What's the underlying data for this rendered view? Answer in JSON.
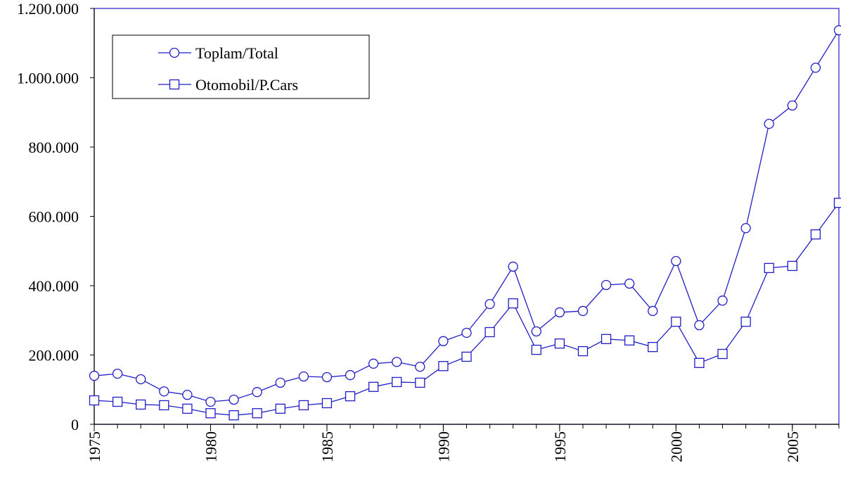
{
  "chart_data": {
    "type": "line",
    "x": [
      1975,
      1976,
      1977,
      1978,
      1979,
      1980,
      1981,
      1982,
      1983,
      1984,
      1985,
      1986,
      1987,
      1988,
      1989,
      1990,
      1991,
      1992,
      1993,
      1994,
      1995,
      1996,
      1997,
      1998,
      1999,
      2000,
      2001,
      2002,
      2003,
      2004,
      2005,
      2006,
      2007
    ],
    "series": [
      {
        "name": "Toplam/Total",
        "color": "#1f1fc8",
        "marker": "circle",
        "values": [
          140000,
          146000,
          130000,
          95000,
          85000,
          65000,
          71000,
          93000,
          120000,
          138000,
          136000,
          142000,
          175000,
          180000,
          166000,
          240000,
          264000,
          347000,
          455000,
          268000,
          323000,
          327000,
          402000,
          406000,
          327000,
          471000,
          286000,
          357000,
          566000,
          867000,
          920000,
          1029000,
          1137000
        ]
      },
      {
        "name": "Otomobil/P.Cars",
        "color": "#1f1fc8",
        "marker": "square",
        "values": [
          69000,
          65000,
          57000,
          55000,
          45000,
          32000,
          26000,
          32000,
          45000,
          55000,
          61000,
          81000,
          108000,
          122000,
          120000,
          168000,
          195000,
          266000,
          349000,
          215000,
          233000,
          211000,
          246000,
          242000,
          223000,
          296000,
          177000,
          203000,
          296000,
          451000,
          457000,
          548000,
          639000
        ]
      }
    ],
    "xlim": [
      1975,
      2007
    ],
    "xticks": [
      1975,
      1980,
      1985,
      1990,
      1995,
      2000,
      2005
    ],
    "ylim": [
      0,
      1200000
    ],
    "yticks": [
      0,
      {
        "value": 200000,
        "label": "200.000"
      },
      {
        "value": 400000,
        "label": "400.000"
      },
      {
        "value": 600000,
        "label": "600.000"
      },
      {
        "value": 800000,
        "label": "800.000"
      },
      {
        "value": 1000000,
        "label": "1.000.000"
      },
      {
        "value": 1200000,
        "label": "1.200.000"
      }
    ],
    "legend": "upper left"
  }
}
